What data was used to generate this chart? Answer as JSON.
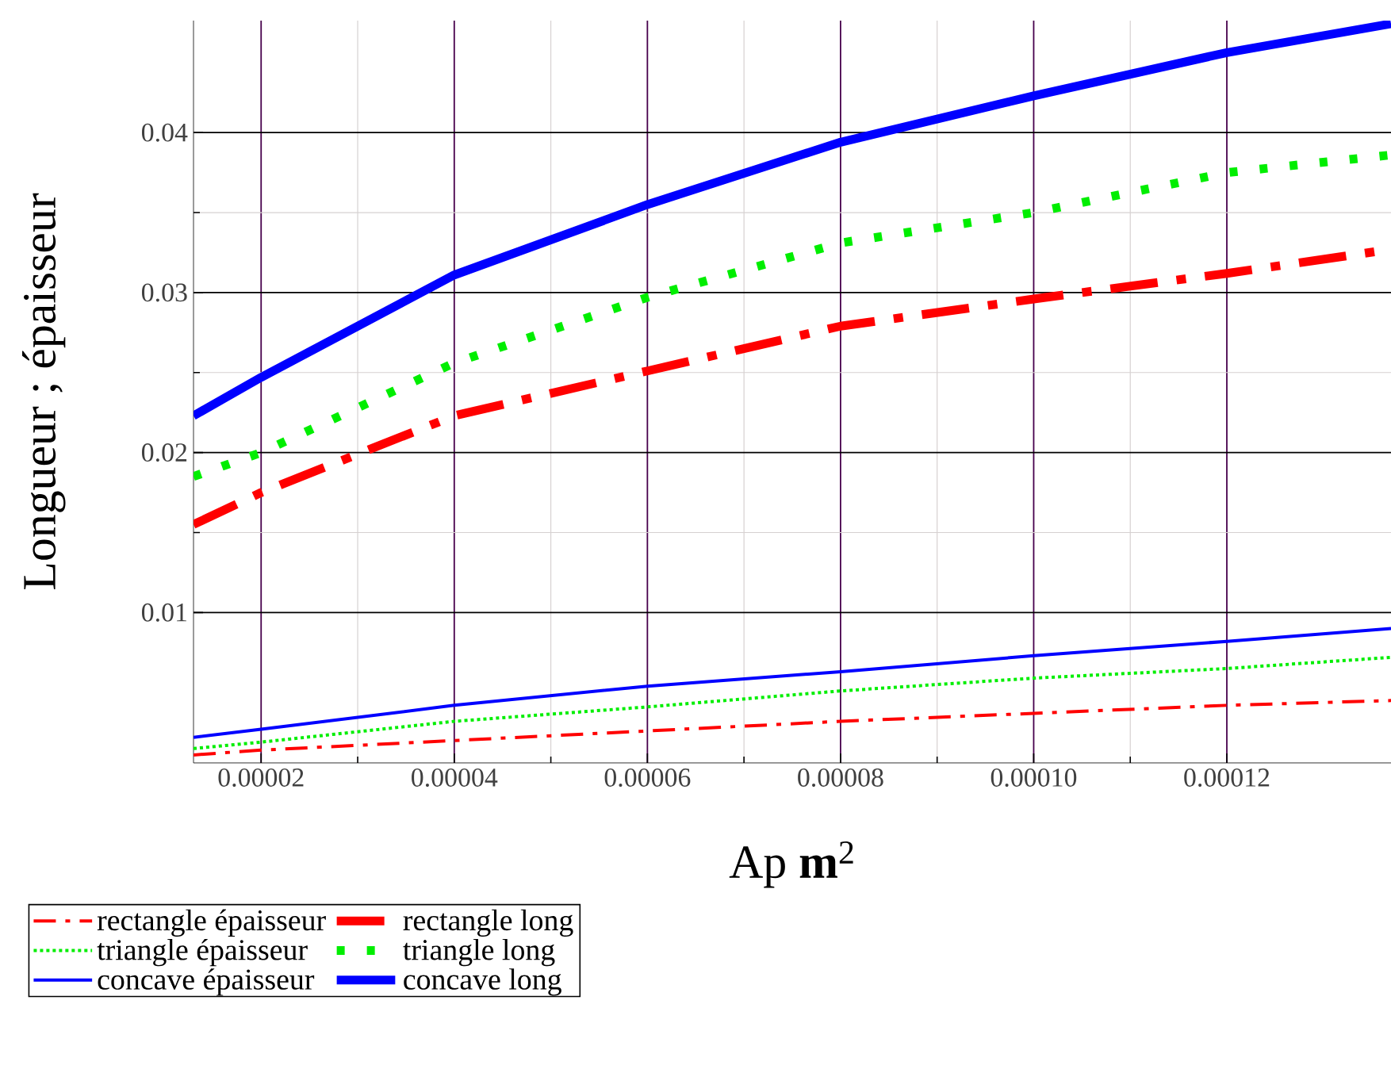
{
  "chart_data": {
    "type": "line",
    "xlabel": "Ap **m**$^{2}$",
    "ylabel": "Longueur ; épaisseur",
    "x": [
      1.3e-05,
      2e-05,
      4e-05,
      6e-05,
      8e-05,
      0.0001,
      0.00012,
      0.000137
    ],
    "series": [
      {
        "name": "rectangle épaisseur",
        "color": "#ff0000",
        "line_style": "dashdot",
        "values": [
          0.0011,
          0.0014,
          0.002,
          0.0026,
          0.0032,
          0.0037,
          0.0042,
          0.0045
        ]
      },
      {
        "name": "rectangle long",
        "color": "#ff0000",
        "line_style": "dashdot",
        "values": [
          0.0155,
          0.0175,
          0.0223,
          0.0251,
          0.0279,
          0.0296,
          0.0312,
          0.0327
        ]
      },
      {
        "name": "triangle épaisseur",
        "color": "#00ee00",
        "line_style": "dotted",
        "values": [
          0.0015,
          0.0019,
          0.0032,
          0.0041,
          0.0051,
          0.0059,
          0.0065,
          0.0072
        ]
      },
      {
        "name": "triangle long",
        "color": "#00ee00",
        "line_style": "dotted",
        "values": [
          0.0185,
          0.02,
          0.0256,
          0.0297,
          0.0331,
          0.035,
          0.0375,
          0.0386
        ]
      },
      {
        "name": "concave épaisseur",
        "color": "#0000ff",
        "line_style": "solid",
        "values": [
          0.0022,
          0.0027,
          0.0042,
          0.0054,
          0.0063,
          0.0073,
          0.0082,
          0.009
        ]
      },
      {
        "name": "concave long",
        "color": "#0000ff",
        "line_style": "solid",
        "values": [
          0.0223,
          0.0247,
          0.0311,
          0.0355,
          0.0394,
          0.0423,
          0.045,
          0.0468
        ]
      }
    ],
    "xlim": [
      1.3e-05,
      0.000137
    ],
    "ylim": [
      0.0006,
      0.047
    ],
    "xticks": [
      {
        "value": 2e-05,
        "label": "0.00002"
      },
      {
        "value": 4e-05,
        "label": "0.00004"
      },
      {
        "value": 6e-05,
        "label": "0.00006"
      },
      {
        "value": 8e-05,
        "label": "0.00008"
      },
      {
        "value": 0.0001,
        "label": "0.00010"
      },
      {
        "value": 0.00012,
        "label": "0.00012"
      }
    ],
    "yticks": [
      0.01,
      0.02,
      0.03,
      0.04
    ],
    "grid": true,
    "legend": "bottom",
    "marker": "none"
  }
}
